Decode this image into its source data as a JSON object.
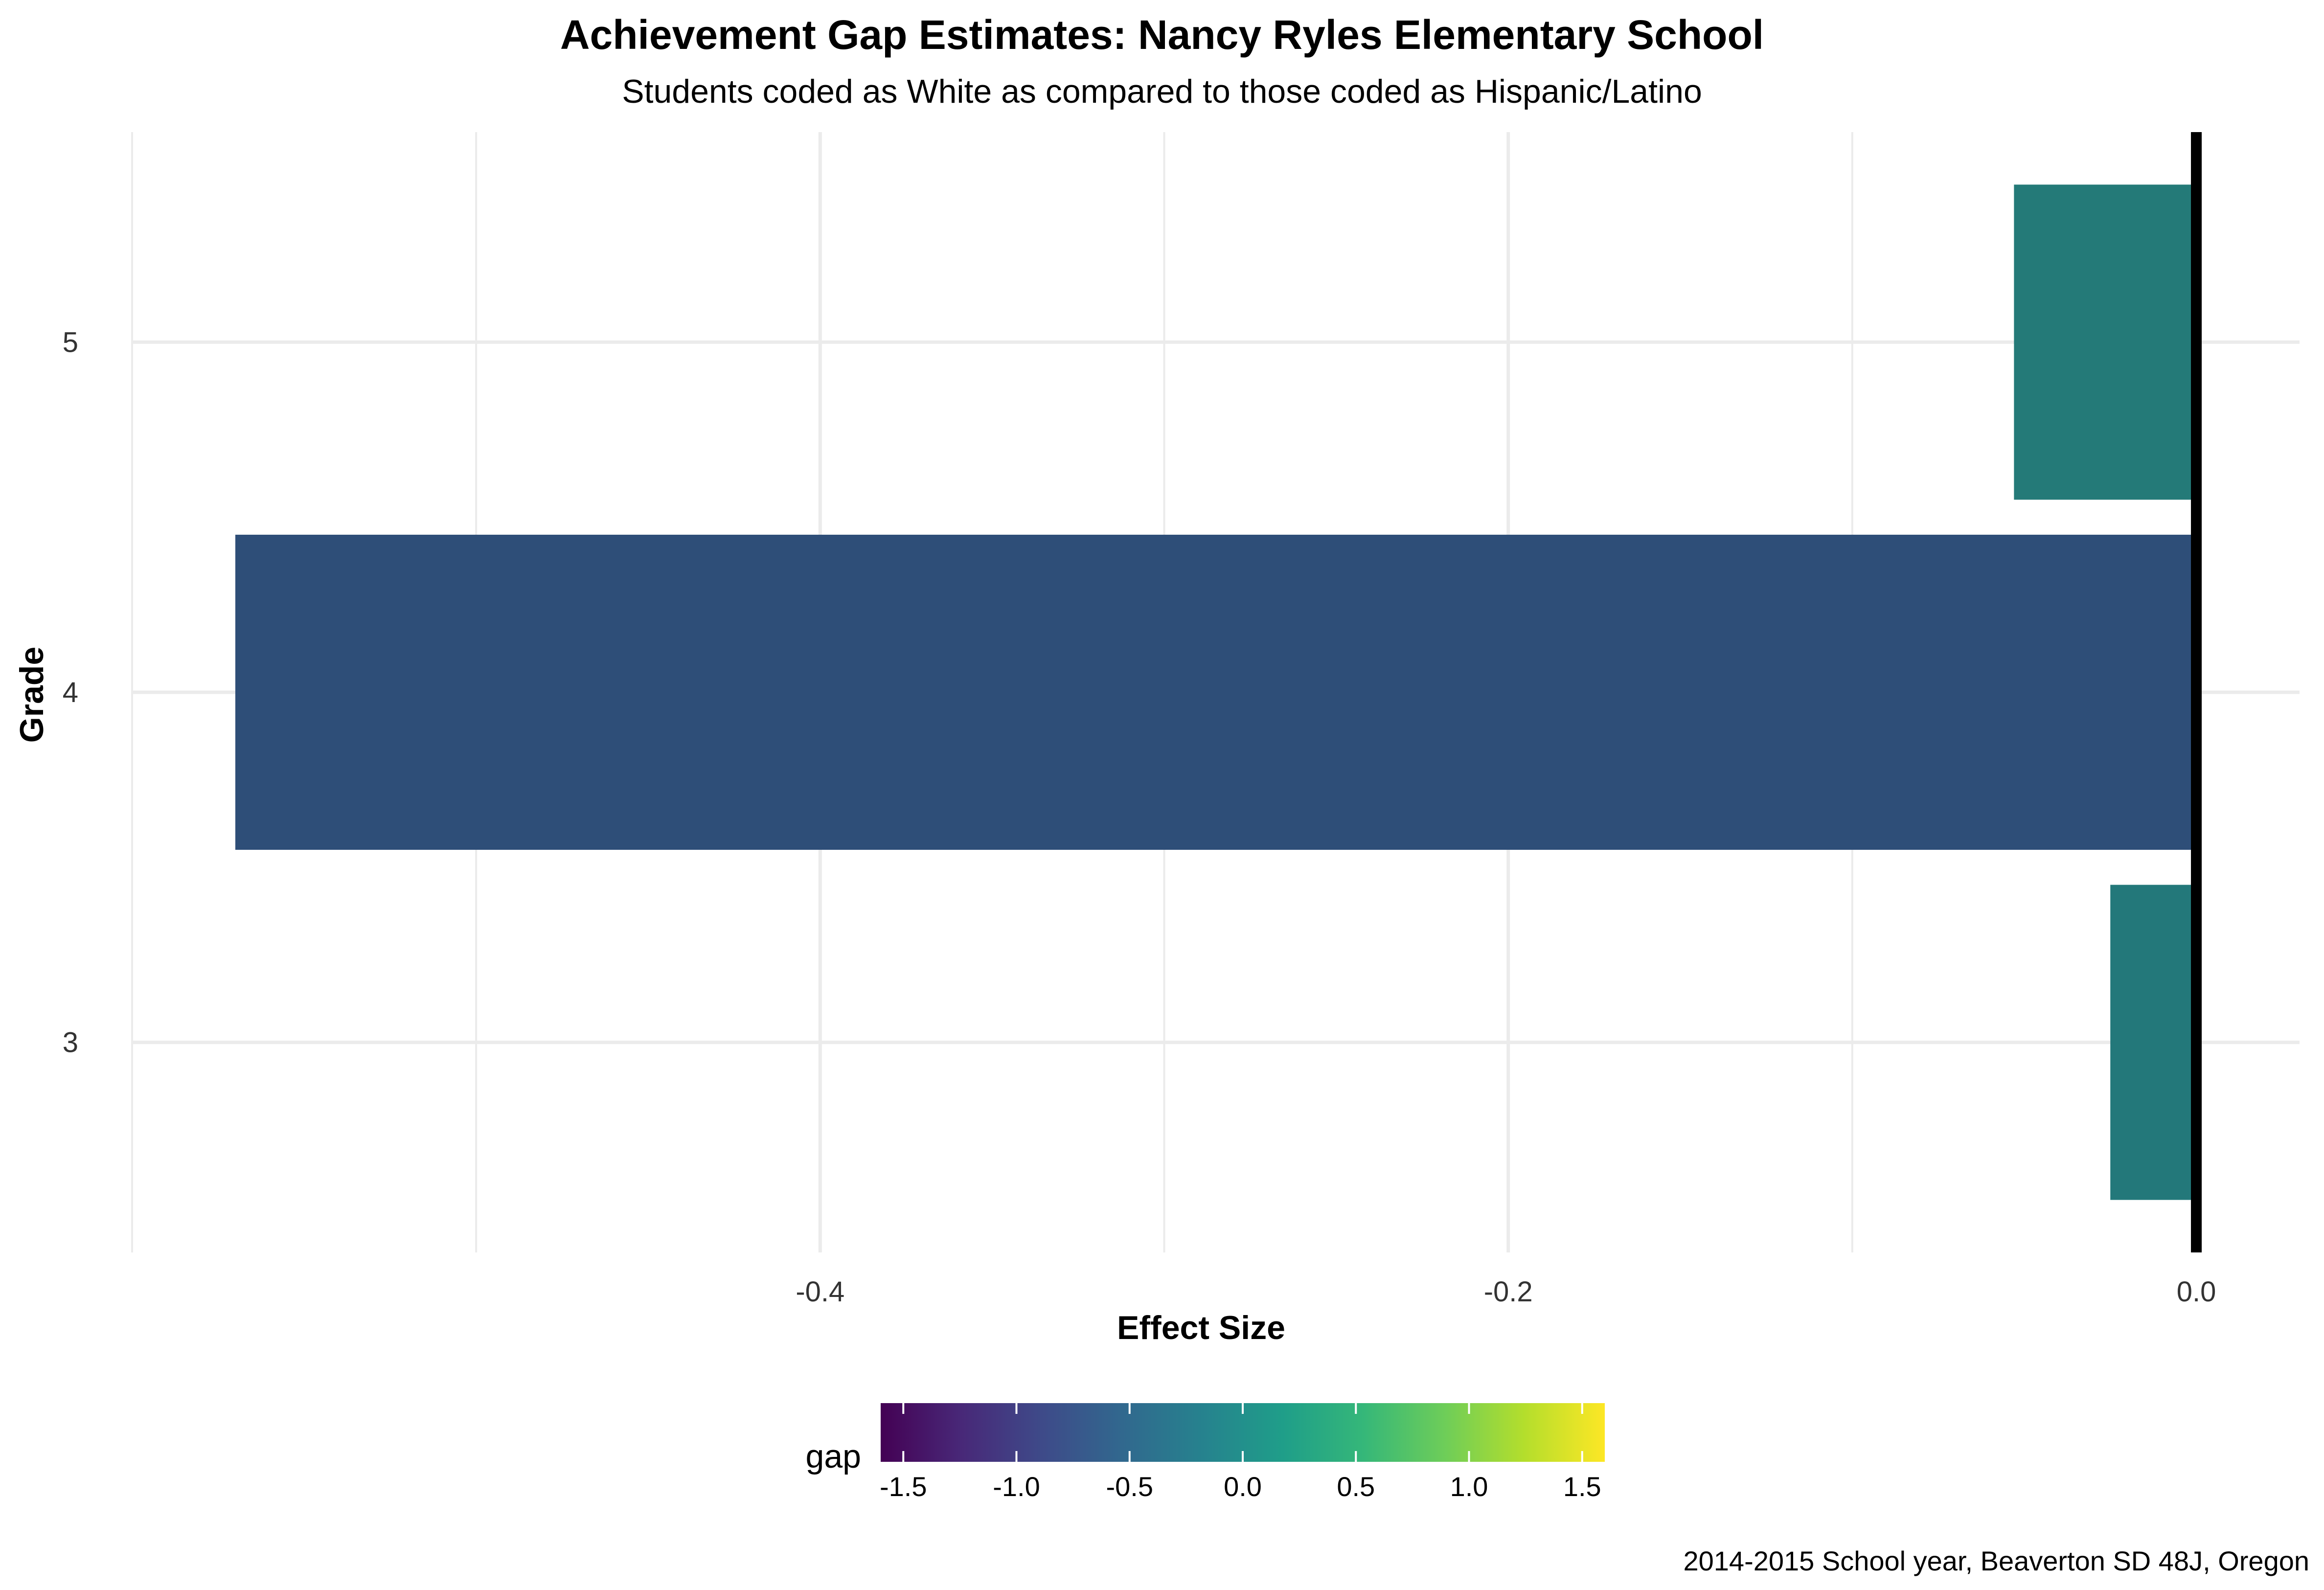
{
  "chart_data": {
    "type": "bar",
    "orientation": "horizontal",
    "title": "Achievement Gap Estimates: Nancy Ryles Elementary School",
    "subtitle": "Students coded as White as compared to those coded as Hispanic/Latino",
    "xlabel": "Effect Size",
    "ylabel": "Grade",
    "categories": [
      "3",
      "4",
      "5"
    ],
    "values": [
      -0.025,
      -0.57,
      -0.053
    ],
    "colors": [
      "#23787A",
      "#2E4E78",
      "#247A78"
    ],
    "xlim": [
      -0.6,
      0.03
    ],
    "x_ticks": [
      "-0.4",
      "-0.2",
      "0.0"
    ],
    "x_tick_values": [
      -0.4,
      -0.2,
      0.0
    ],
    "reference_line": 0,
    "grid": true,
    "legend": {
      "title": "gap",
      "type": "colorbar",
      "position": "bottom",
      "range": [
        -1.6,
        1.6
      ],
      "ticks": [
        "-1.5",
        "-1.0",
        "-0.5",
        "0.0",
        "0.5",
        "1.0",
        "1.5"
      ],
      "tick_values": [
        -1.5,
        -1.0,
        -0.5,
        0.0,
        0.5,
        1.0,
        1.5
      ],
      "palette": [
        "#440154",
        "#482878",
        "#3E4A89",
        "#31688E",
        "#26828E",
        "#1F9E89",
        "#35B779",
        "#6DCD59",
        "#B4DE2C",
        "#FDE725"
      ]
    },
    "caption": "2014-2015 School year, Beaverton SD 48J, Oregon"
  }
}
